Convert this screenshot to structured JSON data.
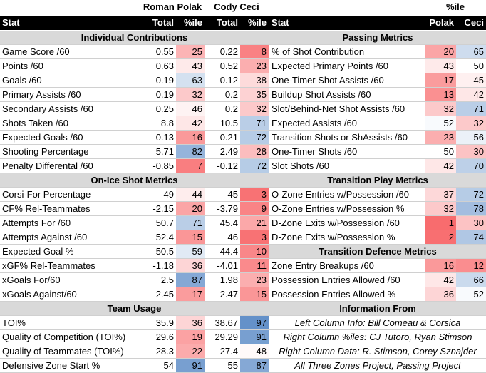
{
  "top_headers": {
    "player1": "Roman Polak",
    "player2": "Cody Ceci",
    "right_pct": "%ile"
  },
  "col_headers": {
    "stat": "Stat",
    "total": "Total",
    "pct": "%ile",
    "right_stat": "Stat",
    "polak": "Polak",
    "ceci": "Ceci"
  },
  "left_column": [
    {
      "type": "section",
      "label": "Individual Contributions"
    },
    {
      "type": "row",
      "label": "Game Score /60",
      "t1": "0.55",
      "p1": "25",
      "t2": "0.22",
      "p2": "8"
    },
    {
      "type": "row",
      "label": "Points /60",
      "t1": "0.63",
      "p1": "43",
      "t2": "0.52",
      "p2": "23"
    },
    {
      "type": "row",
      "label": "Goals /60",
      "t1": "0.19",
      "p1": "63",
      "t2": "0.12",
      "p2": "38"
    },
    {
      "type": "row",
      "label": "Primary Assists /60",
      "t1": "0.19",
      "p1": "32",
      "t2": "0.2",
      "p2": "35"
    },
    {
      "type": "row",
      "label": "Secondary Assists /60",
      "t1": "0.25",
      "p1": "46",
      "t2": "0.2",
      "p2": "32"
    },
    {
      "type": "row",
      "label": "Shots Taken /60",
      "t1": "8.8",
      "p1": "42",
      "t2": "10.5",
      "p2": "71"
    },
    {
      "type": "row",
      "label": "Expected Goals /60",
      "t1": "0.13",
      "p1": "16",
      "t2": "0.21",
      "p2": "72"
    },
    {
      "type": "row",
      "label": "Shooting Percentage",
      "t1": "5.71",
      "p1": "82",
      "t2": "2.49",
      "p2": "28"
    },
    {
      "type": "row",
      "label": "Penalty Differental /60",
      "t1": "-0.85",
      "p1": "7",
      "t2": "-0.12",
      "p2": "72"
    },
    {
      "type": "section",
      "label": "On-Ice Shot Metrics"
    },
    {
      "type": "row",
      "label": "Corsi-For Percentage",
      "t1": "49",
      "p1": "44",
      "t2": "45",
      "p2": "3"
    },
    {
      "type": "row",
      "label": "CF% Rel-Teammates",
      "t1": "-2.15",
      "p1": "20",
      "t2": "-3.79",
      "p2": "9"
    },
    {
      "type": "row",
      "label": "Attempts For /60",
      "t1": "50.7",
      "p1": "71",
      "t2": "45.4",
      "p2": "21"
    },
    {
      "type": "row",
      "label": "Attempts Against /60",
      "t1": "52.4",
      "p1": "15",
      "t2": "46",
      "p2": "3"
    },
    {
      "type": "row",
      "label": "Expected Goal %",
      "t1": "50.5",
      "p1": "59",
      "t2": "44.4",
      "p2": "10"
    },
    {
      "type": "row",
      "label": "xGF% Rel-Teammates",
      "t1": "-1.18",
      "p1": "36",
      "t2": "-4.01",
      "p2": "11"
    },
    {
      "type": "row",
      "label": "xGoals For/60",
      "t1": "2.5",
      "p1": "87",
      "t2": "1.98",
      "p2": "23"
    },
    {
      "type": "row",
      "label": "xGoals Against/60",
      "t1": "2.45",
      "p1": "17",
      "t2": "2.47",
      "p2": "15"
    },
    {
      "type": "section",
      "label": "Team Usage"
    },
    {
      "type": "row",
      "label": "TOI%",
      "t1": "35.9",
      "p1": "36",
      "t2": "38.67",
      "p2": "97"
    },
    {
      "type": "row",
      "label": "Quality of Competition (TOI%)",
      "t1": "29.6",
      "p1": "19",
      "t2": "29.29",
      "p2": "91"
    },
    {
      "type": "row",
      "label": "Quality of Teammates (TOI%)",
      "t1": "28.3",
      "p1": "22",
      "t2": "27.4",
      "p2": "48"
    },
    {
      "type": "row",
      "label": "Defensive Zone Start %",
      "t1": "54",
      "p1": "91",
      "t2": "55",
      "p2": "87"
    }
  ],
  "right_column": [
    {
      "type": "section",
      "label": "Passing Metrics"
    },
    {
      "type": "row",
      "label": "% of Shot Contribution",
      "p1": "20",
      "p2": "65"
    },
    {
      "type": "row",
      "label": "Expected Primary Points /60",
      "p1": "43",
      "p2": "50"
    },
    {
      "type": "row",
      "label": "One-Timer Shot Assists /60",
      "p1": "17",
      "p2": "45"
    },
    {
      "type": "row",
      "label": "Buildup Shot Assists /60",
      "p1": "13",
      "p2": "42"
    },
    {
      "type": "row",
      "label": "Slot/Behind-Net Shot Assists /60",
      "p1": "32",
      "p2": "71"
    },
    {
      "type": "row",
      "label": "Expected Assists /60",
      "p1": "52",
      "p2": "32"
    },
    {
      "type": "row",
      "label": "Transition Shots or ShAssists /60",
      "p1": "23",
      "p2": "56"
    },
    {
      "type": "row",
      "label": "One-Timer Shots /60",
      "p1": "50",
      "p2": "30"
    },
    {
      "type": "row",
      "label": "Slot Shots /60",
      "p1": "42",
      "p2": "70"
    },
    {
      "type": "section",
      "label": "Transition Play Metrics"
    },
    {
      "type": "row",
      "label": "O-Zone Entries w/Possession /60",
      "p1": "37",
      "p2": "72"
    },
    {
      "type": "row",
      "label": "O-Zone Entries w/Possession %",
      "p1": "32",
      "p2": "78"
    },
    {
      "type": "row",
      "label": "D-Zone Exits w/Possession /60",
      "p1": "1",
      "p2": "30"
    },
    {
      "type": "row",
      "label": "D-Zone Exits w/Possession %",
      "p1": "2",
      "p2": "74"
    },
    {
      "type": "section",
      "label": "Transition Defence Metrics"
    },
    {
      "type": "row",
      "label": "Zone Entry Breakups /60",
      "p1": "16",
      "p2": "12"
    },
    {
      "type": "row",
      "label": "Possession Entries Allowed /60",
      "p1": "42",
      "p2": "66"
    },
    {
      "type": "row",
      "label": "Possession Entries Allowed %",
      "p1": "36",
      "p2": "52"
    },
    {
      "type": "section",
      "label": "Information From"
    },
    {
      "type": "info",
      "label": "Left Column Info: Bill Comeau & Corsica"
    },
    {
      "type": "info",
      "label": "Right Column %iles: CJ Tutoro, Ryan Stimson"
    },
    {
      "type": "info",
      "label": "Right Column Data: R. Stimson, Corey Sznajder"
    },
    {
      "type": "info",
      "label": "All Three Zones Project, Passing Project"
    }
  ],
  "scale_colors": {
    "low": "#f8696b",
    "mid": "#ffffff",
    "high": "#5a8ac6"
  }
}
